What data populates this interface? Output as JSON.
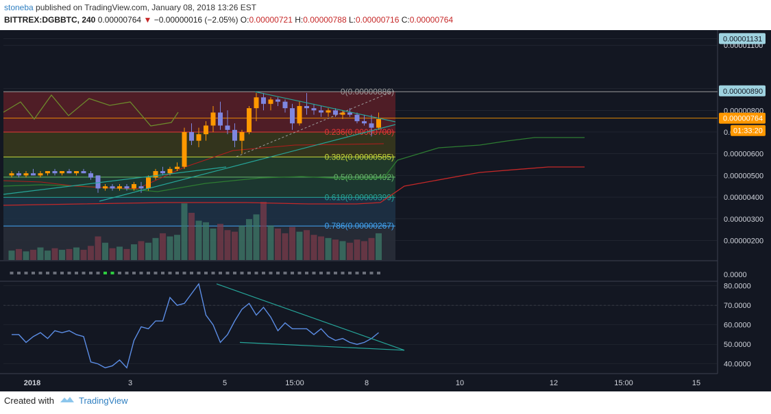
{
  "header": {
    "user": "stoneba",
    "published_text": "published on TradingView.com, January 08, 2018 13:26 EST",
    "symbol": "BITTREX:DGBBTC, 240",
    "last": "0.00000764",
    "change": "−0.00000016 (−2.05%)",
    "open_label": "O:",
    "open": "0.00000721",
    "high_label": "H:",
    "high": "0.00000788",
    "low_label": "L:",
    "low": "0.00000716",
    "close_label": "C:",
    "close": "0.00000764"
  },
  "footer": {
    "created_with": "Created with",
    "brand": "TradingView"
  },
  "colors": {
    "background": "#131722",
    "up": "#ff9800",
    "down": "#7e86e0",
    "rsi": "#5c8ee6",
    "trendline": "#26a69a",
    "grid": "#2a2e39",
    "axis_text": "#d1d4dc"
  },
  "chart_data": [
    {
      "type": "candlestick",
      "title": "BITTREX:DGBBTC, 240",
      "ylim": [
        1.1e-06,
        1.17e-05
      ],
      "y_ticks": [
        "0.00001131",
        "0.00001100",
        "0.00000900",
        "0.00000800",
        "0.00000700",
        "0.00000600",
        "0.00000500",
        "0.00000400",
        "0.00000300",
        "0.00000200"
      ],
      "price_badges": [
        {
          "label": "0.00001131",
          "value": 1.131e-05,
          "color": "#9fd3e0"
        },
        {
          "label": "0.00000890",
          "value": 8.9e-06,
          "color": "#9fd3e0"
        },
        {
          "label": "0.00000764",
          "value": 7.64e-06,
          "color": "#ff9800"
        }
      ],
      "countdown": "01:33:20",
      "candles": [
        [
          5e-06,
          5.2e-06,
          4.9e-06,
          5.1e-06
        ],
        [
          5.1e-06,
          5.2e-06,
          4.9e-06,
          5e-06
        ],
        [
          5e-06,
          5.2e-06,
          4.9e-06,
          5.1e-06
        ],
        [
          5.1e-06,
          5.3e-06,
          5e-06,
          5e-06
        ],
        [
          5e-06,
          5.2e-06,
          4.9e-06,
          5.1e-06
        ],
        [
          5.1e-06,
          5.2e-06,
          5e-06,
          5.2e-06
        ],
        [
          5.2e-06,
          5.3e-06,
          5e-06,
          5.1e-06
        ],
        [
          5.1e-06,
          5.2e-06,
          5e-06,
          5.2e-06
        ],
        [
          5.2e-06,
          5.3e-06,
          5.1e-06,
          5.1e-06
        ],
        [
          5.1e-06,
          5.2e-06,
          5e-06,
          5.2e-06
        ],
        [
          5.2e-06,
          5.3e-06,
          5.1e-06,
          5.1e-06
        ],
        [
          5.1e-06,
          5.2e-06,
          4.8e-06,
          4.9e-06
        ],
        [
          5e-06,
          5e-06,
          4.2e-06,
          4.4e-06
        ],
        [
          4.4e-06,
          4.6e-06,
          4.3e-06,
          4.5e-06
        ],
        [
          4.5e-06,
          4.6e-06,
          4.3e-06,
          4.4e-06
        ],
        [
          4.4e-06,
          4.6e-06,
          4.3e-06,
          4.5e-06
        ],
        [
          4.5e-06,
          4.6e-06,
          4.3e-06,
          4.4e-06
        ],
        [
          4.4e-06,
          4.7e-06,
          4.3e-06,
          4.6e-06
        ],
        [
          4.5e-06,
          4.7e-06,
          4.2e-06,
          4.4e-06
        ],
        [
          4.4e-06,
          5e-06,
          4.3e-06,
          4.9e-06
        ],
        [
          4.9e-06,
          5.3e-06,
          4.8e-06,
          5.2e-06
        ],
        [
          5.2e-06,
          5.4e-06,
          5e-06,
          5.1e-06
        ],
        [
          5.1e-06,
          5.4e-06,
          5e-06,
          5.3e-06
        ],
        [
          5.3e-06,
          5.6e-06,
          5.2e-06,
          5.4e-06
        ],
        [
          5.4e-06,
          7.2e-06,
          5.3e-06,
          7e-06
        ],
        [
          7e-06,
          7.4e-06,
          6.4e-06,
          6.6e-06
        ],
        [
          6.6e-06,
          7.2e-06,
          6.3e-06,
          6.9e-06
        ],
        [
          6.9e-06,
          7.5e-06,
          6.6e-06,
          7.3e-06
        ],
        [
          7.3e-06,
          8.2e-06,
          7e-06,
          7.9e-06
        ],
        [
          7.9e-06,
          8.4e-06,
          7.1e-06,
          7.3e-06
        ],
        [
          7.3e-06,
          8e-06,
          6.9e-06,
          7.1e-06
        ],
        [
          7.1e-06,
          7.4e-06,
          6.3e-06,
          6.6e-06
        ],
        [
          6.6e-06,
          7.1e-06,
          6e-06,
          7e-06
        ],
        [
          7e-06,
          8.2e-06,
          6.9e-06,
          8.1e-06
        ],
        [
          8.1e-06,
          8.8e-06,
          7.5e-06,
          8.6e-06
        ],
        [
          8.6e-06,
          8.8e-06,
          8e-06,
          8.3e-06
        ],
        [
          8.3e-06,
          8.6e-06,
          8e-06,
          8.5e-06
        ],
        [
          8.5e-06,
          8.6e-06,
          8.2e-06,
          8.4e-06
        ],
        [
          8.4e-06,
          8.5e-06,
          7.9e-06,
          8.1e-06
        ],
        [
          8.1e-06,
          8.3e-06,
          7.1e-06,
          7.4e-06
        ],
        [
          7.4e-06,
          8.4e-06,
          7.3e-06,
          8.2e-06
        ],
        [
          8.2e-06,
          8.8e-06,
          7.8e-06,
          8.1e-06
        ],
        [
          8.1e-06,
          8.3e-06,
          7.8e-06,
          8e-06
        ],
        [
          8e-06,
          8.2e-06,
          7.7e-06,
          7.9e-06
        ],
        [
          7.9e-06,
          8.1e-06,
          7.7e-06,
          8e-06
        ],
        [
          8e-06,
          8.1e-06,
          7.7e-06,
          7.8e-06
        ],
        [
          7.8e-06,
          8e-06,
          7.6e-06,
          7.9e-06
        ],
        [
          7.9e-06,
          8.1e-06,
          7.7e-06,
          7.8e-06
        ],
        [
          7.8e-06,
          7.9e-06,
          7.4e-06,
          7.5e-06
        ],
        [
          7.5e-06,
          7.8e-06,
          7.3e-06,
          7.4e-06
        ],
        [
          7.4e-06,
          7.8e-06,
          6.8e-06,
          7.2e-06
        ],
        [
          7.2e-06,
          7.9e-06,
          7.1e-06,
          7.6e-06
        ]
      ],
      "volume": [
        12,
        14,
        11,
        13,
        16,
        12,
        15,
        13,
        14,
        16,
        13,
        18,
        30,
        22,
        15,
        17,
        14,
        20,
        24,
        22,
        28,
        34,
        30,
        32,
        72,
        60,
        50,
        48,
        40,
        46,
        38,
        36,
        44,
        52,
        58,
        74,
        44,
        40,
        34,
        42,
        36,
        38,
        32,
        30,
        28,
        26,
        24,
        22,
        26,
        24,
        28,
        34
      ],
      "fibonacci": [
        {
          "label": "0(0.00000886)",
          "level": 0,
          "value": 8.86e-06,
          "color": "#9e9e9e"
        },
        {
          "label": "0.236(0.00000700)",
          "level": 0.236,
          "value": 7e-06,
          "color": "#e53935"
        },
        {
          "label": "0.382(0.00000585)",
          "level": 0.382,
          "value": 5.85e-06,
          "color": "#c6d83a"
        },
        {
          "label": "0.5(0.00000492)",
          "level": 0.5,
          "value": 4.92e-06,
          "color": "#66bb6a"
        },
        {
          "label": "0.618(0.00000399)",
          "level": 0.618,
          "value": 3.99e-06,
          "color": "#26a69a"
        },
        {
          "label": "0.786(0.00000267)",
          "level": 0.786,
          "value": 2.67e-06,
          "color": "#42a5f5"
        }
      ]
    },
    {
      "type": "line",
      "ylim": [
        0,
        1
      ],
      "y_ticks": [
        "0.0000"
      ]
    },
    {
      "type": "line",
      "ylim": [
        35,
        82
      ],
      "y_ticks": [
        "80.0000",
        "70.0000",
        "60.0000",
        "50.0000",
        "40.0000"
      ],
      "values": [
        55,
        55,
        51,
        54,
        56,
        53,
        57,
        56,
        57,
        55,
        54,
        41,
        40,
        38,
        39,
        42,
        38,
        52,
        59,
        58,
        62,
        62,
        74,
        70,
        71,
        76,
        81,
        65,
        60,
        51,
        55,
        62,
        68,
        71,
        65,
        69,
        64,
        57,
        61,
        58,
        58,
        58,
        55,
        58,
        54,
        52,
        53,
        51,
        50,
        51,
        53,
        56
      ],
      "reference_line": 70
    }
  ],
  "x_axis": {
    "labels": [
      {
        "text": "2018",
        "bold": true
      },
      {
        "text": "3"
      },
      {
        "text": "5"
      },
      {
        "text": "15:00"
      },
      {
        "text": "8"
      },
      {
        "text": "10"
      },
      {
        "text": "12"
      },
      {
        "text": "15:00"
      },
      {
        "text": "15"
      }
    ]
  }
}
